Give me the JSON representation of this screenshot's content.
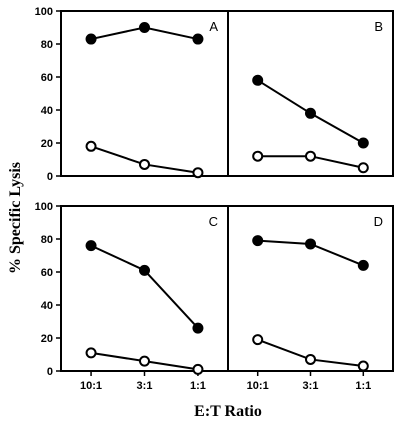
{
  "chart_data": {
    "type": "line",
    "xlabel": "E:T Ratio",
    "ylabel": "% Specific Lysis",
    "categories": [
      "10:1",
      "3:1",
      "1:1"
    ],
    "ylim": [
      0,
      100
    ],
    "yticks": [
      0,
      20,
      40,
      60,
      80,
      100
    ],
    "grid": false,
    "panels": [
      {
        "label": "A",
        "series": [
          {
            "marker": "filled",
            "values": [
              83,
              90,
              83
            ]
          },
          {
            "marker": "open",
            "values": [
              18,
              7,
              2
            ]
          }
        ]
      },
      {
        "label": "B",
        "series": [
          {
            "marker": "filled",
            "values": [
              58,
              38,
              20
            ]
          },
          {
            "marker": "open",
            "values": [
              12,
              12,
              5
            ]
          }
        ]
      },
      {
        "label": "C",
        "series": [
          {
            "marker": "filled",
            "values": [
              76,
              61,
              26
            ]
          },
          {
            "marker": "open",
            "values": [
              11,
              6,
              1
            ]
          }
        ]
      },
      {
        "label": "D",
        "series": [
          {
            "marker": "filled",
            "values": [
              79,
              77,
              64
            ]
          },
          {
            "marker": "open",
            "values": [
              19,
              7,
              3
            ]
          }
        ]
      }
    ]
  }
}
